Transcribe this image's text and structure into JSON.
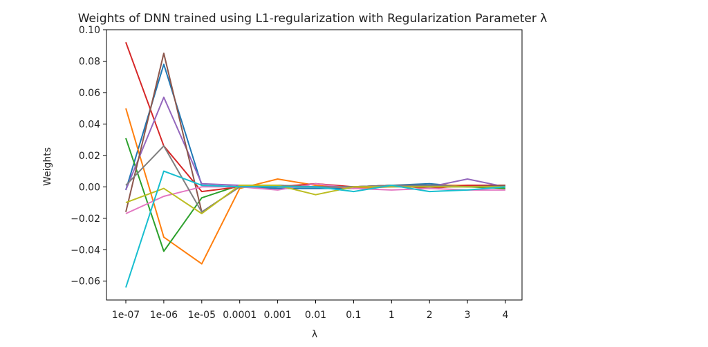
{
  "chart_data": {
    "type": "line",
    "title": "Weights of DNN trained using L1-regularization with Regularization Parameter λ",
    "xlabel": "λ",
    "ylabel": "Weights",
    "categories": [
      "1e-07",
      "1e-06",
      "1e-05",
      "0.0001",
      "0.001",
      "0.01",
      "0.1",
      "1",
      "2",
      "3",
      "4"
    ],
    "y_ticks": [
      -0.06,
      -0.04,
      -0.02,
      0.0,
      0.02,
      0.04,
      0.06,
      0.08,
      0.1
    ],
    "y_tick_labels": [
      "−0.06",
      "−0.04",
      "−0.02",
      "0.00",
      "0.02",
      "0.04",
      "0.06",
      "0.08",
      "0.10"
    ],
    "ylim": [
      -0.072,
      0.1
    ],
    "grid": false,
    "legend": "none",
    "series": [
      {
        "color": "#1f77b4",
        "values": [
          -0.002,
          0.078,
          0.001,
          0.0,
          -0.001,
          -0.001,
          -0.001,
          0.001,
          0.002,
          0.0,
          0.0
        ]
      },
      {
        "color": "#ff7f0e",
        "values": [
          0.05,
          -0.032,
          -0.049,
          -0.001,
          0.005,
          0.001,
          -0.001,
          0.0,
          0.001,
          0.001,
          0.001
        ]
      },
      {
        "color": "#2ca02c",
        "values": [
          0.031,
          -0.041,
          -0.007,
          0.001,
          0.001,
          0.0,
          0.0,
          0.001,
          0.0,
          0.0,
          -0.001
        ]
      },
      {
        "color": "#d62728",
        "values": [
          0.092,
          0.026,
          -0.003,
          0.0,
          0.0,
          0.002,
          0.0,
          0.001,
          -0.001,
          0.001,
          0.001
        ]
      },
      {
        "color": "#9467bd",
        "values": [
          -0.002,
          0.057,
          0.002,
          0.001,
          0.0,
          0.0,
          0.0,
          0.0,
          0.0,
          0.005,
          0.0
        ]
      },
      {
        "color": "#8c564b",
        "values": [
          -0.016,
          0.085,
          -0.016,
          0.0,
          0.0,
          0.0,
          0.0,
          0.001,
          0.001,
          0.0,
          0.001
        ]
      },
      {
        "color": "#e377c2",
        "values": [
          -0.017,
          -0.006,
          0.0,
          0.0,
          -0.002,
          0.002,
          -0.001,
          -0.002,
          -0.001,
          -0.002,
          -0.002
        ]
      },
      {
        "color": "#7f7f7f",
        "values": [
          0.001,
          0.026,
          -0.016,
          0.0,
          0.001,
          0.0,
          0.0,
          0.001,
          0.001,
          0.0,
          0.0
        ]
      },
      {
        "color": "#bcbd22",
        "values": [
          -0.01,
          -0.001,
          -0.017,
          0.001,
          0.001,
          -0.005,
          0.0,
          0.0,
          0.0,
          0.0,
          0.0
        ]
      },
      {
        "color": "#17becf",
        "values": [
          -0.064,
          0.01,
          0.001,
          0.0,
          0.0,
          0.0,
          -0.003,
          0.001,
          -0.003,
          -0.002,
          0.0
        ]
      }
    ]
  }
}
